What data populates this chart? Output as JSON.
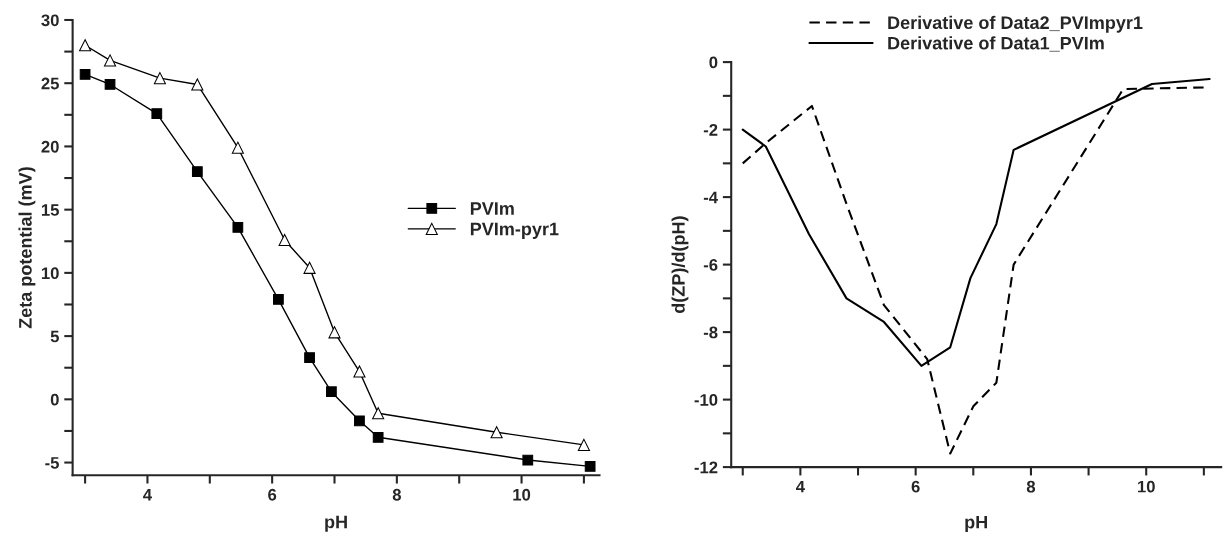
{
  "chart_data": [
    {
      "type": "line",
      "xlabel": "pH",
      "ylabel": "Zeta potential (mV)",
      "legend": "right",
      "grid": false,
      "xlim": [
        2.8,
        11.25
      ],
      "ylim": [
        -6,
        30
      ],
      "xticks": [
        {
          "value": 3,
          "label": null
        },
        4,
        {
          "value": 5,
          "label": null
        },
        6,
        {
          "value": 7,
          "label": null
        },
        8,
        {
          "value": 9,
          "label": null
        },
        10,
        {
          "value": 11,
          "label": null
        }
      ],
      "yticks": [
        -5,
        {
          "value": -2.5,
          "label": null
        },
        0,
        {
          "value": 2.5,
          "label": null
        },
        5,
        {
          "value": 7.5,
          "label": null
        },
        10,
        {
          "value": 12.5,
          "label": null
        },
        15,
        {
          "value": 17.5,
          "label": null
        },
        20,
        {
          "value": 22.5,
          "label": null
        },
        25,
        {
          "value": 27.5,
          "label": null
        },
        30
      ],
      "series": [
        {
          "name": "PVIm",
          "color": "#000000",
          "marker": "square",
          "x": [
            3.0,
            3.4,
            4.15,
            4.8,
            5.45,
            6.1,
            6.6,
            6.95,
            7.4,
            7.7,
            10.1,
            11.1
          ],
          "values": [
            25.7,
            24.9,
            22.6,
            18.0,
            13.6,
            7.9,
            3.3,
            0.6,
            -1.7,
            -3.0,
            -4.8,
            -5.3
          ]
        },
        {
          "name": "PVIm-pyr1",
          "color": "#000000",
          "marker": "triangle",
          "x": [
            3.0,
            3.4,
            4.2,
            4.8,
            5.45,
            6.2,
            6.6,
            7.0,
            7.4,
            7.7,
            9.6,
            11.0
          ],
          "values": [
            28.0,
            26.8,
            25.4,
            24.9,
            19.9,
            12.6,
            10.4,
            5.3,
            2.2,
            -1.1,
            -2.6,
            -3.6
          ]
        }
      ]
    },
    {
      "type": "line",
      "xlabel": "pH",
      "ylabel": "d(ZP)/d(pH)",
      "legend": "top",
      "grid": false,
      "xlim": [
        2.8,
        11.3
      ],
      "ylim": [
        -12,
        0
      ],
      "xticks": [
        {
          "value": 3,
          "label": null
        },
        4,
        {
          "value": 5,
          "label": null
        },
        6,
        {
          "value": 7,
          "label": null
        },
        8,
        {
          "value": 9,
          "label": null
        },
        10,
        {
          "value": 11,
          "label": null
        }
      ],
      "yticks": [
        -12,
        {
          "value": -11,
          "label": null
        },
        -10,
        {
          "value": -9,
          "label": null
        },
        -8,
        {
          "value": -7,
          "label": null
        },
        -6,
        {
          "value": -5,
          "label": null
        },
        -4,
        {
          "value": -3,
          "label": null
        },
        -2,
        {
          "value": -1,
          "label": null
        },
        0
      ],
      "series": [
        {
          "name": "Derivative of Data2_PVImpyr1",
          "color": "#000000",
          "line_style": "dashed",
          "x": [
            3.0,
            3.4,
            4.2,
            4.8,
            5.45,
            6.2,
            6.6,
            7.0,
            7.4,
            7.7,
            9.6,
            11.0
          ],
          "values": [
            -3.0,
            -2.4,
            -1.3,
            -4.2,
            -7.2,
            -8.8,
            -11.6,
            -10.2,
            -9.5,
            -6.0,
            -0.8,
            -0.75
          ]
        },
        {
          "name": "Derivative of Data1_PVIm",
          "color": "#000000",
          "line_style": "solid",
          "x": [
            3.0,
            3.4,
            4.15,
            4.8,
            5.45,
            6.1,
            6.6,
            6.95,
            7.4,
            7.7,
            10.1,
            11.1
          ],
          "values": [
            -2.0,
            -2.5,
            -5.1,
            -7.0,
            -7.7,
            -9.0,
            -8.45,
            -6.4,
            -4.8,
            -2.6,
            -0.65,
            -0.5
          ]
        }
      ]
    }
  ]
}
